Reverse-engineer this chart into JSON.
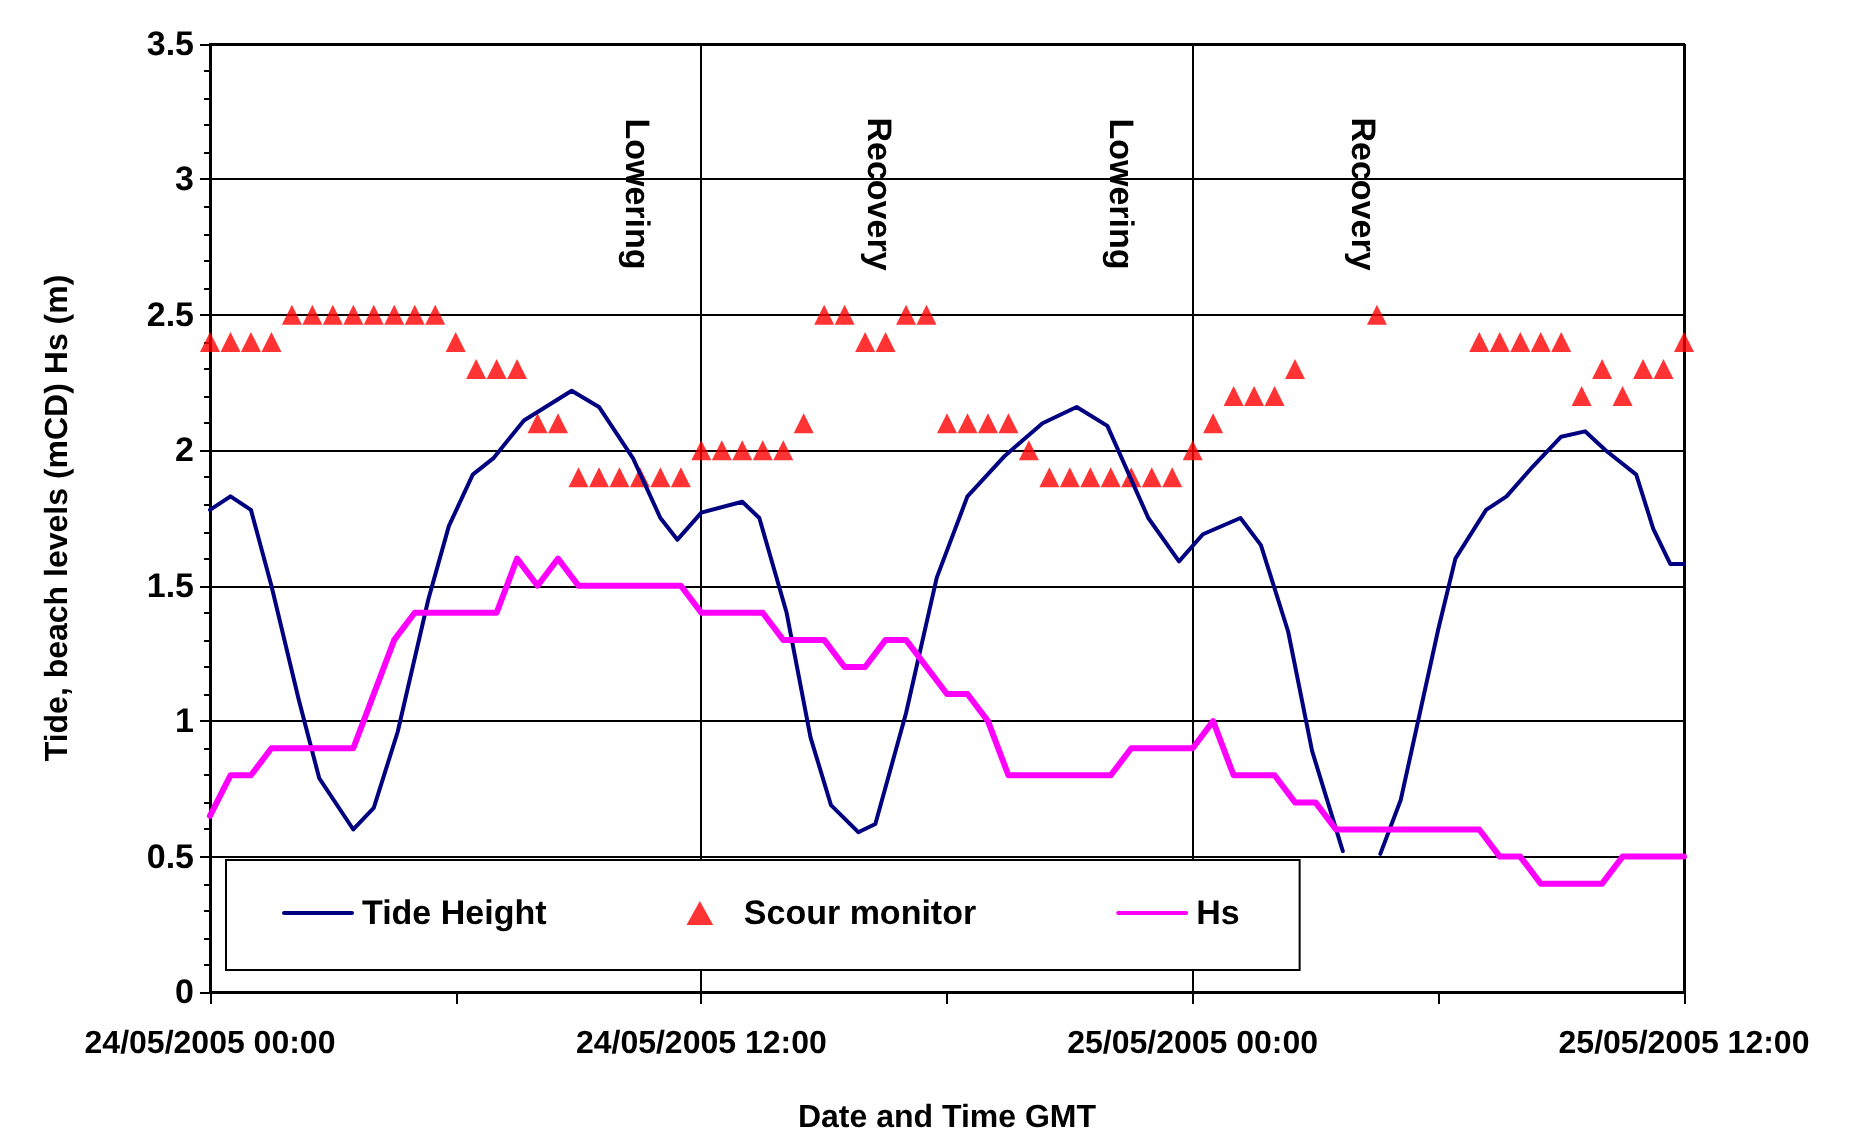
{
  "chart_data": {
    "type": "line",
    "xlabel": "Date and Time GMT",
    "ylabel": "Tide, beach levels (mCD) Hs (m)",
    "xlim": [
      "2005-05-24T00:00",
      "2005-05-25T12:00"
    ],
    "xticks": [
      {
        "value": "2005-05-24T00:00",
        "label": "24/05/2005 00:00"
      },
      {
        "value": "2005-05-24T06:00",
        "label": null
      },
      {
        "value": "2005-05-24T12:00",
        "label": "24/05/2005 12:00"
      },
      {
        "value": "2005-05-24T18:00",
        "label": null
      },
      {
        "value": "2005-05-25T00:00",
        "label": "25/05/2005 00:00"
      },
      {
        "value": "2005-05-25T06:00",
        "label": null
      },
      {
        "value": "2005-05-25T12:00",
        "label": "25/05/2005 12:00"
      }
    ],
    "ylim": [
      0,
      3.5
    ],
    "yticks": [
      0,
      0.5,
      1,
      1.5,
      2,
      2.5,
      3,
      3.5
    ],
    "grid": true,
    "legend": "bottom left",
    "annotations": [
      "Lowering",
      "Recovery",
      "Lowering",
      "Recovery"
    ],
    "series": [
      {
        "name": "Tide Height",
        "type": "line",
        "color": "#000080",
        "marker": "none",
        "line_style": "solid",
        "x": [
          "2005-05-24T00:00",
          "2005-05-24T00:30",
          "2005-05-24T01:00",
          "2005-05-24T01:30",
          "2005-05-24T02:10",
          "2005-05-24T02:40",
          "2005-05-24T03:30",
          "2005-05-24T04:00",
          "2005-05-24T04:35",
          "2005-05-24T05:20",
          "2005-05-24T05:50",
          "2005-05-24T06:25",
          "2005-05-24T06:55",
          "2005-05-24T07:40",
          "2005-05-24T08:50",
          "2005-05-24T09:30",
          "2005-05-24T10:20",
          "2005-05-24T11:00",
          "2005-05-24T11:25",
          "2005-05-24T12:00",
          "2005-05-24T13:00",
          "2005-05-24T13:25",
          "2005-05-24T14:05",
          "2005-05-24T14:40",
          "2005-05-24T15:10",
          "2005-05-24T15:50",
          "2005-05-24T16:15",
          "2005-05-24T17:00",
          "2005-05-24T17:45",
          "2005-05-24T18:30",
          "2005-05-24T19:25",
          "2005-05-24T20:20",
          "2005-05-24T21:10",
          "2005-05-24T21:55",
          "2005-05-24T22:55",
          "2005-05-24T23:40",
          "2005-05-25T00:15",
          "2005-05-25T01:10",
          "2005-05-25T01:40",
          "2005-05-25T02:20",
          "2005-05-25T02:55",
          "2005-05-25T03:40",
          "2005-05-25T04:05",
          "2005-05-25T04:35",
          "2005-05-25T05:05",
          "2005-05-25T06:00",
          "2005-05-25T06:25",
          "2005-05-25T07:10",
          "2005-05-25T07:40",
          "2005-05-25T08:15",
          "2005-05-25T09:00",
          "2005-05-25T09:35",
          "2005-05-25T10:05",
          "2005-05-25T10:50",
          "2005-05-25T11:15",
          "2005-05-25T11:40",
          "2005-05-25T12:00"
        ],
        "values": [
          1.78,
          1.83,
          1.78,
          1.5,
          1.08,
          0.79,
          0.6,
          0.68,
          0.96,
          1.45,
          1.72,
          1.91,
          1.97,
          2.11,
          2.22,
          2.16,
          1.97,
          1.75,
          1.67,
          1.77,
          1.81,
          1.75,
          1.4,
          0.94,
          0.69,
          0.59,
          0.62,
          1.03,
          1.53,
          1.83,
          1.98,
          2.1,
          2.16,
          2.09,
          1.75,
          1.59,
          1.69,
          1.75,
          1.65,
          1.33,
          0.89,
          0.52,
          null,
          0.51,
          0.71,
          1.34,
          1.6,
          1.78,
          1.83,
          1.93,
          2.05,
          2.07,
          2.0,
          1.91,
          1.71,
          1.58,
          1.58
        ]
      },
      {
        "name": "Scour monitor",
        "type": "scatter",
        "color": "#ff0000",
        "marker": "triangle",
        "x": [
          "2005-05-24T00:00",
          "2005-05-24T00:30",
          "2005-05-24T01:00",
          "2005-05-24T01:30",
          "2005-05-24T02:00",
          "2005-05-24T02:30",
          "2005-05-24T03:00",
          "2005-05-24T03:30",
          "2005-05-24T04:00",
          "2005-05-24T04:30",
          "2005-05-24T05:00",
          "2005-05-24T05:30",
          "2005-05-24T06:00",
          "2005-05-24T06:30",
          "2005-05-24T07:00",
          "2005-05-24T07:30",
          "2005-05-24T08:00",
          "2005-05-24T08:30",
          "2005-05-24T09:00",
          "2005-05-24T09:30",
          "2005-05-24T10:00",
          "2005-05-24T10:30",
          "2005-05-24T11:00",
          "2005-05-24T11:30",
          "2005-05-24T12:00",
          "2005-05-24T12:30",
          "2005-05-24T13:00",
          "2005-05-24T13:30",
          "2005-05-24T14:00",
          "2005-05-24T14:30",
          "2005-05-24T15:00",
          "2005-05-24T15:30",
          "2005-05-24T16:00",
          "2005-05-24T16:30",
          "2005-05-24T17:00",
          "2005-05-24T17:30",
          "2005-05-24T18:00",
          "2005-05-24T18:30",
          "2005-05-24T19:00",
          "2005-05-24T19:30",
          "2005-05-24T20:00",
          "2005-05-24T20:30",
          "2005-05-24T21:00",
          "2005-05-24T21:30",
          "2005-05-24T22:00",
          "2005-05-24T22:30",
          "2005-05-24T23:00",
          "2005-05-24T23:30",
          "2005-05-25T00:00",
          "2005-05-25T00:30",
          "2005-05-25T01:00",
          "2005-05-25T01:30",
          "2005-05-25T02:00",
          "2005-05-25T02:30",
          "2005-05-25T04:30",
          "2005-05-25T07:00",
          "2005-05-25T07:30",
          "2005-05-25T08:00",
          "2005-05-25T08:30",
          "2005-05-25T09:00",
          "2005-05-25T09:30",
          "2005-05-25T10:00",
          "2005-05-25T10:30",
          "2005-05-25T11:00",
          "2005-05-25T11:30",
          "2005-05-25T12:00"
        ],
        "values": [
          2.4,
          2.4,
          2.4,
          2.4,
          2.5,
          2.5,
          2.5,
          2.5,
          2.5,
          2.5,
          2.5,
          2.5,
          2.4,
          2.3,
          2.3,
          2.3,
          2.1,
          2.1,
          1.9,
          1.9,
          1.9,
          1.9,
          1.9,
          1.9,
          2.0,
          2.0,
          2.0,
          2.0,
          2.0,
          2.1,
          2.5,
          2.5,
          2.4,
          2.4,
          2.5,
          2.5,
          2.1,
          2.1,
          2.1,
          2.1,
          2.0,
          1.9,
          1.9,
          1.9,
          1.9,
          1.9,
          1.9,
          1.9,
          2.0,
          2.1,
          2.2,
          2.2,
          2.2,
          2.3,
          2.5,
          2.4,
          2.4,
          2.4,
          2.4,
          2.4,
          2.2,
          2.3,
          2.2,
          2.3,
          2.3,
          2.4
        ]
      },
      {
        "name": "Hs",
        "type": "line",
        "color": "#ff00ff",
        "marker": "none",
        "line_style": "solid",
        "x": [
          "2005-05-24T00:00",
          "2005-05-24T00:30",
          "2005-05-24T01:00",
          "2005-05-24T01:30",
          "2005-05-24T03:30",
          "2005-05-24T04:30",
          "2005-05-24T05:00",
          "2005-05-24T07:00",
          "2005-05-24T07:30",
          "2005-05-24T08:00",
          "2005-05-24T08:30",
          "2005-05-24T09:00",
          "2005-05-24T11:30",
          "2005-05-24T12:00",
          "2005-05-24T13:30",
          "2005-05-24T14:00",
          "2005-05-24T15:00",
          "2005-05-24T15:30",
          "2005-05-24T16:00",
          "2005-05-24T16:30",
          "2005-05-24T17:00",
          "2005-05-24T18:00",
          "2005-05-24T18:30",
          "2005-05-24T19:00",
          "2005-05-24T19:30",
          "2005-05-24T22:00",
          "2005-05-24T22:30",
          "2005-05-25T00:00",
          "2005-05-25T00:30",
          "2005-05-25T01:00",
          "2005-05-25T02:00",
          "2005-05-25T02:30",
          "2005-05-25T03:00",
          "2005-05-25T03:30",
          "2005-05-25T07:00",
          "2005-05-25T07:30",
          "2005-05-25T08:00",
          "2005-05-25T08:30",
          "2005-05-25T10:00",
          "2005-05-25T10:30",
          "2005-05-25T12:00"
        ],
        "values": [
          0.65,
          0.8,
          0.8,
          0.9,
          0.9,
          1.3,
          1.4,
          1.4,
          1.6,
          1.5,
          1.6,
          1.5,
          1.5,
          1.4,
          1.4,
          1.3,
          1.3,
          1.2,
          1.2,
          1.3,
          1.3,
          1.1,
          1.1,
          1.0,
          0.8,
          0.8,
          0.9,
          0.9,
          1.0,
          0.8,
          0.8,
          0.7,
          0.7,
          0.6,
          0.6,
          0.5,
          0.5,
          0.4,
          0.4,
          0.5,
          0.5
        ]
      }
    ]
  }
}
